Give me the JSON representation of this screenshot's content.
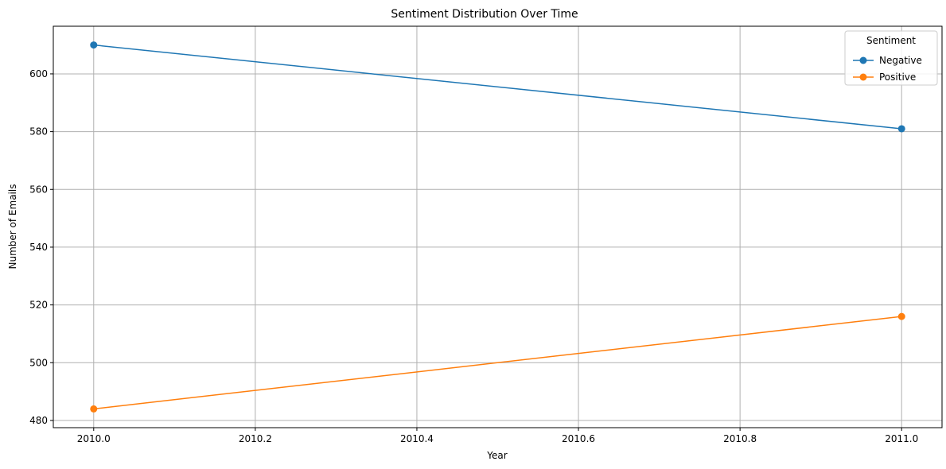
{
  "chart_data": {
    "type": "line",
    "title": "Sentiment Distribution Over Time",
    "xlabel": "Year",
    "ylabel": "Number of Emails",
    "xlim": [
      1999.95,
      2011.05
    ],
    "ylim": [
      477.5,
      616.5
    ],
    "xticks": [
      2010.0,
      2010.2,
      2010.4,
      2010.6,
      2010.8,
      2011.0
    ],
    "xtick_labels": [
      "2010.0",
      "2010.2",
      "2010.4",
      "2010.6",
      "2010.8",
      "2011.0"
    ],
    "yticks": [
      480,
      500,
      520,
      540,
      560,
      580,
      600
    ],
    "ytick_labels": [
      "480",
      "500",
      "520",
      "540",
      "560",
      "580",
      "600"
    ],
    "grid": true,
    "legend": {
      "title": "Sentiment",
      "placement": "top-right"
    },
    "series": [
      {
        "name": "Negative",
        "color": "#1f77b4",
        "x": [
          2010,
          2011
        ],
        "y": [
          610,
          581
        ]
      },
      {
        "name": "Positive",
        "color": "#ff7f0e",
        "x": [
          2010,
          2011
        ],
        "y": [
          484,
          516
        ]
      }
    ]
  }
}
